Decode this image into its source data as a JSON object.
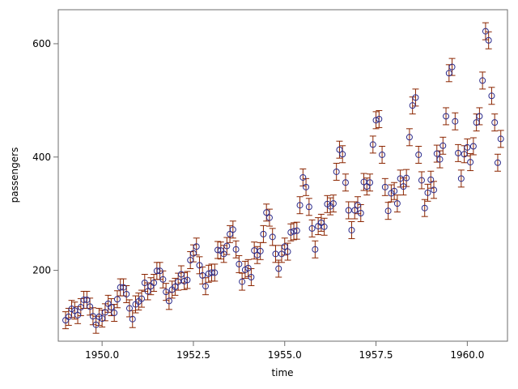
{
  "colors": {
    "background": "#ffffff",
    "frame": "#6e6e6e",
    "marker": "#2c2c8c",
    "errorbar": "#8b2500"
  },
  "chart_data": {
    "type": "scatter",
    "title": "",
    "xlabel": "time",
    "ylabel": "passengers",
    "xlim": [
      1948.8,
      1961.1
    ],
    "ylim": [
      75,
      660
    ],
    "xticks": [
      {
        "value": 1950.0,
        "label": "1950.0"
      },
      {
        "value": 1952.5,
        "label": "1952.5"
      },
      {
        "value": 1955.0,
        "label": "1955.0"
      },
      {
        "value": 1957.5,
        "label": "1957.5"
      },
      {
        "value": 1960.0,
        "label": "1960.0"
      }
    ],
    "yticks": [
      {
        "value": 200,
        "label": "200"
      },
      {
        "value": 400,
        "label": "400"
      },
      {
        "value": 600,
        "label": "600"
      }
    ],
    "grid": false,
    "legend": "none",
    "error_bar_halfwidth": 15,
    "marker": "open-circle",
    "x_start": 1949.0,
    "x_step": 0.083333,
    "y": [
      112,
      118,
      132,
      129,
      121,
      135,
      148,
      148,
      136,
      119,
      104,
      118,
      115,
      126,
      141,
      135,
      125,
      149,
      170,
      170,
      158,
      133,
      114,
      140,
      145,
      150,
      178,
      163,
      172,
      178,
      199,
      199,
      184,
      162,
      146,
      166,
      171,
      180,
      193,
      181,
      183,
      218,
      230,
      242,
      209,
      191,
      172,
      194,
      196,
      196,
      236,
      235,
      229,
      243,
      264,
      272,
      237,
      211,
      180,
      201,
      204,
      188,
      235,
      227,
      234,
      264,
      302,
      293,
      259,
      229,
      203,
      229,
      242,
      233,
      267,
      269,
      270,
      315,
      364,
      347,
      312,
      274,
      237,
      278,
      284,
      277,
      317,
      313,
      318,
      374,
      413,
      405,
      355,
      306,
      271,
      306,
      315,
      301,
      356,
      348,
      355,
      422,
      465,
      467,
      404,
      347,
      305,
      336,
      340,
      318,
      362,
      348,
      363,
      435,
      491,
      505,
      404,
      359,
      310,
      337,
      360,
      342,
      406,
      396,
      420,
      472,
      548,
      559,
      463,
      407,
      362,
      405,
      417,
      391,
      419,
      461,
      472,
      535,
      622,
      606,
      508,
      461,
      390,
      432
    ]
  }
}
